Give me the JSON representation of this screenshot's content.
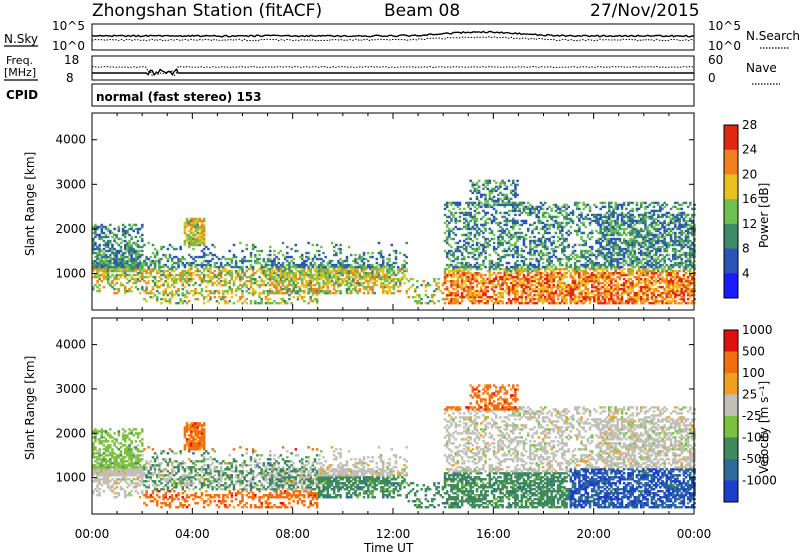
{
  "header": {
    "station": "Zhongshan Station (fitACF)",
    "beam": "Beam 08",
    "date": "27/Nov/2015"
  },
  "noise_panel": {
    "left_label": "N.Sky",
    "left_ticks": [
      "10^5",
      "10^0"
    ],
    "right_ticks": [
      "10^5",
      "10^0"
    ],
    "right_label": "N.Search"
  },
  "freq_panel": {
    "left_label_1": "Freq.",
    "left_label_2": "[MHz]",
    "left_ticks": [
      "18",
      "8"
    ],
    "right_ticks": [
      "60",
      "0"
    ],
    "right_label": "Nave"
  },
  "cpid": {
    "label": "CPID",
    "text": "normal (fast stereo) 153"
  },
  "chart_data": [
    {
      "type": "heatmap",
      "panel": "power",
      "ylabel": "Slant Range [km]",
      "ylim": [
        180,
        4600
      ],
      "yticks": [
        1000,
        2000,
        3000,
        4000
      ],
      "xlabel": "",
      "colorbar_label": "Power [dB]",
      "colorbar_ticks": [
        4,
        8,
        12,
        16,
        20,
        24,
        28
      ],
      "colors": [
        "#1a1aff",
        "#2a55b5",
        "#3d8a6b",
        "#6ec050",
        "#e8c020",
        "#f08020",
        "#e02810"
      ],
      "bins_edges": [
        0,
        6,
        10,
        14,
        18,
        22,
        26,
        30
      ],
      "echo_regions_hours": [
        {
          "t": [
            0.0,
            12.0
          ],
          "range_km": [
            500,
            2300
          ],
          "level": "weak-moderate"
        },
        {
          "t": [
            3.6,
            4.5
          ],
          "range_km": [
            1700,
            2200
          ],
          "level": "moderate-strong"
        },
        {
          "t": [
            14.0,
            24.0
          ],
          "range_km": [
            300,
            3100
          ],
          "level": "moderate-strong"
        }
      ]
    },
    {
      "type": "heatmap",
      "panel": "velocity",
      "ylabel": "Slant Range [km]",
      "ylim": [
        180,
        4600
      ],
      "yticks": [
        1000,
        2000,
        3000,
        4000
      ],
      "xlabel": "Time UT",
      "xticks": [
        "00:00",
        "04:00",
        "08:00",
        "12:00",
        "16:00",
        "20:00",
        "00:00"
      ],
      "colorbar_label": "Velocity [m s⁻¹]",
      "colorbar_ticks": [
        1000,
        500,
        100,
        25,
        -25,
        -100,
        -500,
        -1000
      ],
      "colors": [
        "#1a3fc8",
        "#2c6b9a",
        "#3e8a5a",
        "#7cc040",
        "#c0c0b8",
        "#f0a020",
        "#f07010",
        "#e01010"
      ]
    }
  ]
}
